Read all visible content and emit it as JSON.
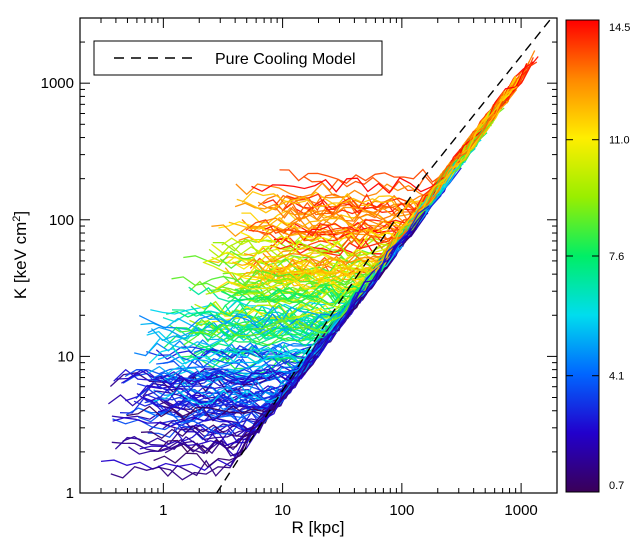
{
  "chart_data": {
    "type": "line",
    "title": "",
    "xlabel": "R [kpc]",
    "ylabel_main": "K [keV cm",
    "ylabel_sup": "2",
    "ylabel_end": "]",
    "x_scale": "log",
    "y_scale": "log",
    "xlim": [
      0.2,
      2000
    ],
    "ylim": [
      1,
      3000
    ],
    "x_ticks": [
      {
        "value": 1,
        "label": "1"
      },
      {
        "value": 10,
        "label": "10"
      },
      {
        "value": 100,
        "label": "100"
      },
      {
        "value": 1000,
        "label": "1000"
      }
    ],
    "y_ticks": [
      {
        "value": 1,
        "label": "1"
      },
      {
        "value": 10,
        "label": "10"
      },
      {
        "value": 100,
        "label": "100"
      },
      {
        "value": 1000,
        "label": "1000"
      }
    ],
    "grid": false,
    "legend": {
      "placement": "top-left",
      "entries": [
        {
          "label": "Pure Cooling Model",
          "style": "dashed",
          "color": "#000000"
        }
      ]
    },
    "reference_line": {
      "name": "Pure Cooling Model",
      "points": [
        [
          2.8,
          1
        ],
        [
          30,
          25
        ],
        [
          150,
          200
        ],
        [
          1800,
          3000
        ]
      ]
    },
    "colorbar": {
      "ticks": [
        "0.7",
        "4.1",
        "7.6",
        "11.0",
        "14.5"
      ],
      "min": 0.7,
      "max": 14.5,
      "colors": [
        "#3a0058",
        "#2200cc",
        "#0066ff",
        "#00ddee",
        "#00ee66",
        "#99ee00",
        "#ffee00",
        "#ff8800",
        "#ff0000"
      ]
    },
    "series_summary": {
      "count": 230,
      "r_min": 0.5,
      "r_max": 1150,
      "k_min": 1.8,
      "k_max": 2900,
      "description_hidden": true
    }
  }
}
